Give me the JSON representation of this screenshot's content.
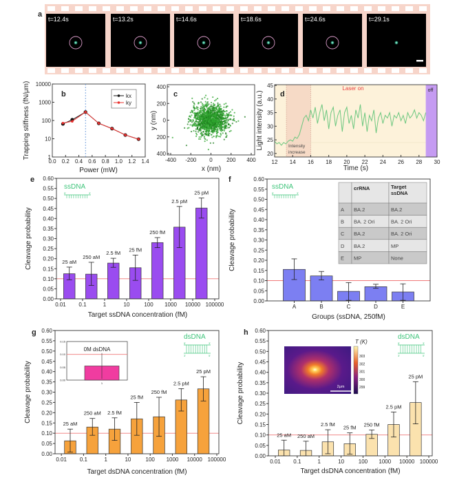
{
  "panel_a": {
    "letter": "a",
    "frames": [
      {
        "time": "t=12.4s",
        "circle": true
      },
      {
        "time": "t=13.2s",
        "circle": true
      },
      {
        "time": "t=14.6s",
        "circle": true
      },
      {
        "time": "t=18.6s",
        "circle": true
      },
      {
        "time": "t=24.6s",
        "circle": true
      },
      {
        "time": "t=29.1s",
        "circle": false
      }
    ]
  },
  "chart_data": [
    {
      "panel": "b",
      "type": "line",
      "xlabel": "Power (mW)",
      "ylabel": "Trapping stiffness (fN/μm)",
      "xlim": [
        0,
        1.4
      ],
      "ylim": [
        1,
        10000
      ],
      "yscale": "log",
      "xticks": [
        "0.0",
        "0.2",
        "0.4",
        "0.6",
        "0.8",
        "1.0",
        "1.2",
        "1.4"
      ],
      "yticks": [
        "1",
        "10",
        "100",
        "1000",
        "10000"
      ],
      "vline": 0.5,
      "vline_color": "#5b8fd6",
      "legend": "top-right",
      "series": [
        {
          "name": "kx",
          "color": "#111111",
          "x": [
            0.16,
            0.3,
            0.5,
            0.7,
            0.9,
            1.1,
            1.3
          ],
          "y": [
            65,
            110,
            290,
            70,
            36,
            16,
            9.5
          ]
        },
        {
          "name": "ky",
          "color": "#e8302e",
          "x": [
            0.16,
            0.3,
            0.5,
            0.7,
            0.9,
            1.1,
            1.3
          ],
          "y": [
            72,
            90,
            290,
            70,
            36,
            16,
            9.5
          ]
        }
      ]
    },
    {
      "panel": "c",
      "type": "scatter",
      "xlabel": "x (nm)",
      "ylabel": "y (nm)",
      "xlim": [
        -400,
        400
      ],
      "ylim": [
        -400,
        400
      ],
      "xticks": [
        "-400",
        "-200",
        "0",
        "200",
        "400"
      ],
      "yticks": [
        "400",
        "200",
        "0",
        "200",
        "400"
      ],
      "ytick_values": [
        400,
        200,
        0,
        -200,
        -400
      ],
      "color": "#2fa52f"
    },
    {
      "panel": "d",
      "type": "line",
      "xlabel": "Time (s)",
      "ylabel": "Light intensity (a.u.)",
      "xlim": [
        12,
        30
      ],
      "ylim": [
        18.7,
        45.25
      ],
      "xticks": [
        "12",
        "14",
        "16",
        "18",
        "20",
        "22",
        "24",
        "26",
        "28",
        "30"
      ],
      "yticks": [
        "20",
        "25",
        "30",
        "35",
        "40",
        "45"
      ],
      "regions": [
        {
          "label": "Laser on",
          "from": 12,
          "to": 28.75,
          "color": "#fdf2da",
          "label_color": "#e84040"
        },
        {
          "label_lines": [
            "Intensity",
            "increase"
          ],
          "from": 13.3,
          "to": 16,
          "color": "#f6dac6",
          "label_color": "#444444"
        },
        {
          "label": "off",
          "from": 28.75,
          "to": 30,
          "color": "#c59bf2",
          "label_color": "#222222"
        }
      ],
      "series": [
        {
          "color": "#6cc77f",
          "x": [
            12,
            12.25,
            12.5,
            12.75,
            13,
            13.25,
            13.5,
            13.75,
            14,
            14.25,
            14.5,
            14.75,
            15,
            15.25,
            15.5,
            15.75,
            16,
            16.25,
            16.5,
            16.75,
            17,
            17.25,
            17.5,
            17.75,
            18,
            18.25,
            18.5,
            18.75,
            19,
            19.25,
            19.5,
            19.75,
            20,
            20.25,
            20.5,
            20.75,
            21,
            21.25,
            21.5,
            21.75,
            22,
            22.25,
            22.5,
            22.75,
            23,
            23.25,
            23.5,
            23.75,
            24,
            24.25,
            24.5,
            24.75,
            25,
            25.25,
            25.5,
            25.75,
            26,
            26.25,
            26.5,
            26.75,
            27,
            27.25,
            27.5,
            27.75,
            28,
            28.25,
            28.5,
            28.75
          ],
          "y": [
            24.5,
            23.5,
            24,
            23,
            24,
            23.5,
            24.5,
            25,
            24.5,
            26,
            25.5,
            27,
            30,
            33,
            34,
            32,
            36,
            33,
            37,
            31,
            35,
            38,
            32,
            36,
            29,
            35,
            37,
            30,
            34,
            36,
            28,
            35,
            37,
            31,
            34,
            29,
            36,
            33,
            38,
            30,
            35,
            28,
            34,
            32,
            36,
            27.5,
            33,
            35,
            31,
            34,
            33,
            35,
            30,
            34,
            33,
            35,
            32,
            34,
            31,
            35,
            33,
            34,
            36,
            33,
            35,
            34,
            32,
            35
          ]
        }
      ]
    },
    {
      "panel": "e",
      "type": "bar",
      "xlabel": "Target ssDNA concentration (fM)",
      "ylabel": "Cleavage probability",
      "xscale": "log",
      "xlim": [
        0.0065,
        154000
      ],
      "ylim": [
        0,
        0.6
      ],
      "xticks": [
        "0.01",
        "0.1",
        "1",
        "10",
        "100",
        "1000",
        "10000",
        "100000"
      ],
      "yticks": [
        "0.00",
        "0.05",
        "0.10",
        "0.15",
        "0.20",
        "0.25",
        "0.30",
        "0.35",
        "0.40",
        "0.45",
        "0.50",
        "0.55",
        "0.60"
      ],
      "categories": [
        0.025,
        0.25,
        2.5,
        25,
        250,
        2500,
        25000
      ],
      "values": [
        0.125,
        0.123,
        0.178,
        0.155,
        0.28,
        0.357,
        0.452
      ],
      "err_low": [
        0.095,
        0.067,
        0.157,
        0.092,
        0.255,
        0.255,
        0.402
      ],
      "err_high": [
        0.158,
        0.182,
        0.202,
        0.218,
        0.305,
        0.46,
        0.502
      ],
      "labels": [
        "25 aM",
        "250 aM",
        "2.5 fM",
        "25 fM",
        "250 fM",
        "2.5 pM",
        "25 pM"
      ],
      "reference_line": 0.1,
      "reference_color": "#f07878",
      "bar_color": "#9a4cf0",
      "strand": {
        "label": "ssDNA",
        "five": "5'",
        "three": "3'",
        "color": "#3ec47a"
      }
    },
    {
      "panel": "f",
      "type": "bar",
      "xlabel": "Groups (ssDNA, 250fM)",
      "ylabel": "Cleavage probability",
      "ylim": [
        0,
        0.6
      ],
      "yticks": [
        "0.00",
        "0.05",
        "0.10",
        "0.15",
        "0.20",
        "0.25",
        "0.30",
        "0.35",
        "0.40",
        "0.45",
        "0.50",
        "0.55",
        "0.60"
      ],
      "categories": [
        "A",
        "B",
        "C",
        "D",
        "E"
      ],
      "values": [
        0.155,
        0.123,
        0.047,
        0.07,
        0.044
      ],
      "err_low": [
        0.105,
        0.103,
        0.003,
        0.062,
        0.003
      ],
      "err_high": [
        0.207,
        0.145,
        0.09,
        0.082,
        0.084
      ],
      "reference_line": 0.1,
      "reference_color": "#f07878",
      "bar_color": "#7c7ff2",
      "strand": {
        "label": "ssDNA",
        "five": "5'",
        "three": "3'",
        "color": "#3ec47a"
      },
      "table": {
        "headers": [
          "",
          "crRNA",
          "Target ssDNA"
        ],
        "rows": [
          [
            "A",
            "BA.2",
            "BA.2"
          ],
          [
            "B",
            "BA. 2 Ori",
            "BA. 2 Ori"
          ],
          [
            "C",
            "BA.2",
            "BA. 2 Ori"
          ],
          [
            "D",
            "BA.2",
            "MP"
          ],
          [
            "E",
            "MP",
            "None"
          ]
        ]
      }
    },
    {
      "panel": "g",
      "type": "bar",
      "xlabel": "Target dsDNA concentration (fM)",
      "ylabel": "Cleavage probability",
      "xscale": "log",
      "xlim": [
        0.0052,
        124000
      ],
      "ylim": [
        0,
        0.6
      ],
      "xticks": [
        "0.01",
        "0.1",
        "1",
        "10",
        "100",
        "1000",
        "10000",
        "100000"
      ],
      "yticks": [
        "0.00",
        "0.05",
        "0.10",
        "0.15",
        "0.20",
        "0.25",
        "0.30",
        "0.35",
        "0.40",
        "0.45",
        "0.50",
        "0.55",
        "0.60"
      ],
      "categories": [
        0.025,
        0.25,
        2.5,
        25,
        250,
        2500,
        25000
      ],
      "values": [
        0.063,
        0.13,
        0.12,
        0.17,
        0.18,
        0.262,
        0.316
      ],
      "err_low": [
        0.008,
        0.09,
        0.065,
        0.09,
        0.085,
        0.208,
        0.257
      ],
      "err_high": [
        0.12,
        0.172,
        0.175,
        0.25,
        0.275,
        0.317,
        0.375
      ],
      "labels": [
        "25 aM",
        "250 aM",
        "2.5 fM",
        "25 fM",
        "250 fM",
        "2.5 pM",
        "25 pM"
      ],
      "reference_line": 0.1,
      "reference_color": "#f07878",
      "bar_color": "#f6a23c",
      "strand": {
        "label": "dsDNA",
        "five": "5'",
        "three": "3'",
        "color": "#3ec47a"
      },
      "inset": {
        "type": "bar",
        "title": "0M dsDNA",
        "ylim": [
          0,
          0.15
        ],
        "yticks": [
          "0.00",
          "0.05",
          "0.10",
          "0.15"
        ],
        "xticks": [
          "1"
        ],
        "value": 0.055,
        "err_low": 0.005,
        "err_high": 0.105,
        "reference_line": 0.1,
        "bar_color": "#f03ca0"
      }
    },
    {
      "panel": "h",
      "type": "bar",
      "xlabel": "Target dsDNA concentration (fM)",
      "ylabel": "Cleavage probability",
      "xscale": "log",
      "xlim": [
        0.00486,
        143000
      ],
      "ylim": [
        0,
        0.6
      ],
      "xticks": [
        "0.01",
        "0.1",
        "1",
        "10",
        "100",
        "1000",
        "10000",
        "100000"
      ],
      "yticks": [
        "0.00",
        "0.05",
        "0.10",
        "0.15",
        "0.20",
        "0.25",
        "0.30",
        "0.35",
        "0.40",
        "0.45",
        "0.50",
        "0.55",
        "0.60"
      ],
      "categories": [
        0.025,
        0.25,
        2.5,
        25,
        250,
        2500,
        25000
      ],
      "values": [
        0.028,
        0.026,
        0.067,
        0.058,
        0.103,
        0.15,
        0.255
      ],
      "err_low": [
        0.0,
        0.0,
        0.01,
        0.008,
        0.083,
        0.09,
        0.153
      ],
      "err_high": [
        0.075,
        0.07,
        0.125,
        0.11,
        0.124,
        0.21,
        0.355
      ],
      "labels": [
        "25 aM",
        "250 aM",
        "2.5 fM",
        "25 fM",
        "250 fM",
        "2.5 pM",
        "25 pM"
      ],
      "reference_line": 0.1,
      "reference_color": "#f07878",
      "bar_color": "#fbe2ae",
      "strand": {
        "label": "dsDNA",
        "five": "5'",
        "three": "3'",
        "color": "#3ec47a"
      },
      "inset": {
        "type": "heatmap",
        "colorbar_title": "T (K)",
        "colorbar_ticks": [
          "303",
          "302",
          "301",
          "300",
          "299"
        ],
        "scale_bar": "2μm"
      }
    }
  ]
}
